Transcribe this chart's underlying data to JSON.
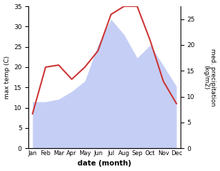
{
  "months": [
    "Jan",
    "Feb",
    "Mar",
    "Apr",
    "May",
    "Jun",
    "Jul",
    "Aug",
    "Sep",
    "Oct",
    "Nov",
    "Dec"
  ],
  "temp": [
    8.5,
    20.0,
    20.5,
    17.0,
    20.0,
    24.0,
    33.0,
    35.0,
    35.0,
    26.5,
    16.5,
    11.0
  ],
  "precip": [
    9.0,
    9.0,
    9.5,
    11.0,
    13.0,
    20.0,
    25.0,
    22.0,
    17.5,
    20.0,
    16.0,
    12.0
  ],
  "temp_color": "#cc3333",
  "precip_fill_color": "#c5cff5",
  "xlabel": "date (month)",
  "ylabel_left": "max temp (C)",
  "ylabel_right": "med. precipitation\n(kg/m2)",
  "ylim_left": [
    0,
    35
  ],
  "ylim_right": [
    0,
    27.5
  ],
  "yticks_left": [
    0,
    5,
    10,
    15,
    20,
    25,
    30,
    35
  ],
  "yticks_right": [
    0,
    5,
    10,
    15,
    20,
    25
  ],
  "figsize": [
    3.18,
    2.47
  ],
  "dpi": 100
}
